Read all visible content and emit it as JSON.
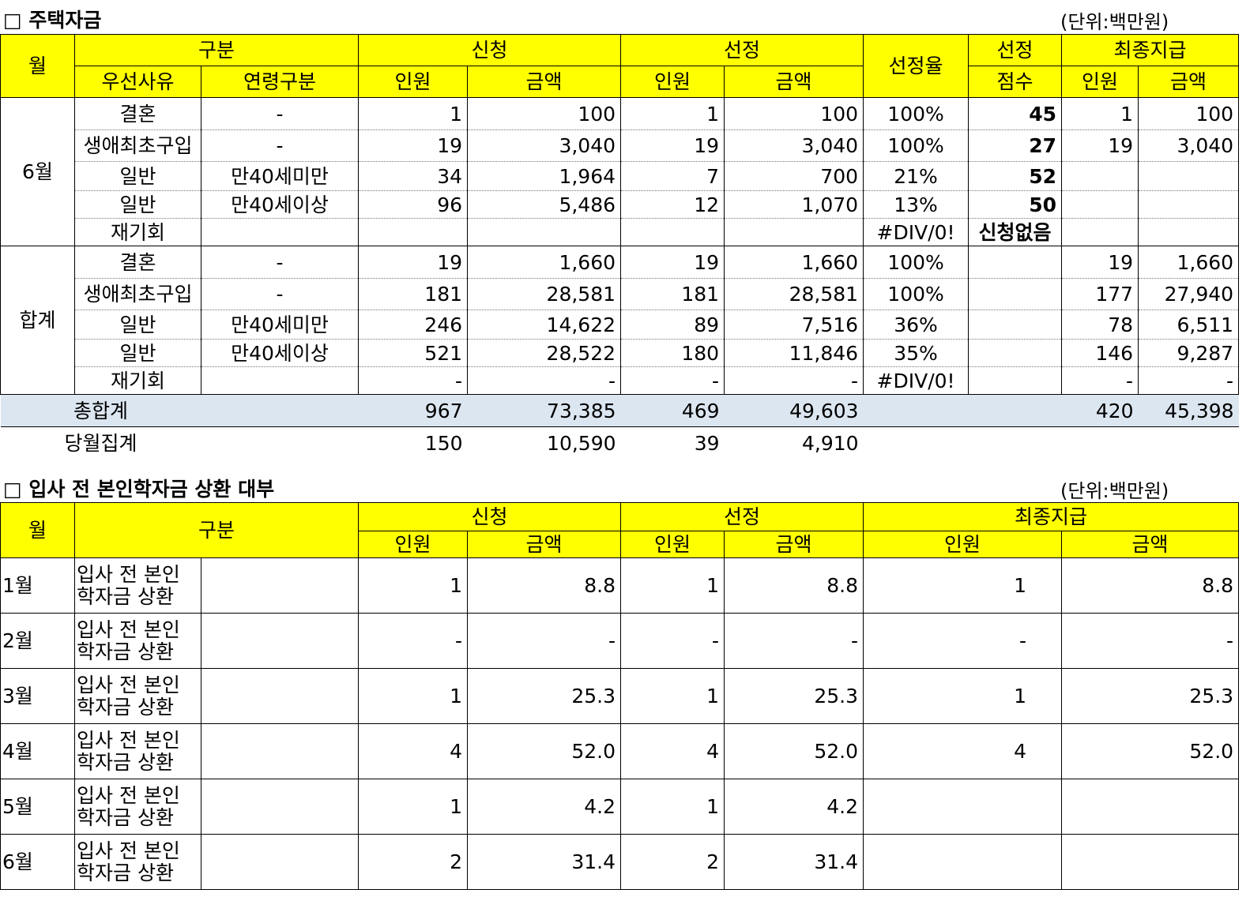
{
  "section1": {
    "title": "□ 주택자금",
    "unit": "(단위:백만원)",
    "headers": {
      "month": "월",
      "category": "구분",
      "priority": "우선사유",
      "age": "연령구분",
      "apply": "신청",
      "select": "선정",
      "rate": "선정율",
      "score_top": "선정",
      "score_bottom": "점수",
      "final": "최종지급",
      "people": "인원",
      "amount": "금액"
    },
    "groups": [
      {
        "month": "6월",
        "rows": [
          {
            "reason": "결혼",
            "age": "-",
            "apply_n": "1",
            "apply_amt": "100",
            "sel_n": "1",
            "sel_amt": "100",
            "rate": "100%",
            "score": "45",
            "final_n": "1",
            "final_amt": "100"
          },
          {
            "reason": "생애최초구입",
            "age": "-",
            "apply_n": "19",
            "apply_amt": "3,040",
            "sel_n": "19",
            "sel_amt": "3,040",
            "rate": "100%",
            "score": "27",
            "final_n": "19",
            "final_amt": "3,040"
          },
          {
            "reason": "일반",
            "age": "만40세미만",
            "apply_n": "34",
            "apply_amt": "1,964",
            "sel_n": "7",
            "sel_amt": "700",
            "rate": "21%",
            "score": "52",
            "final_n": "",
            "final_amt": ""
          },
          {
            "reason": "일반",
            "age": "만40세이상",
            "apply_n": "96",
            "apply_amt": "5,486",
            "sel_n": "12",
            "sel_amt": "1,070",
            "rate": "13%",
            "score": "50",
            "final_n": "",
            "final_amt": ""
          },
          {
            "reason": "재기회",
            "age": "",
            "apply_n": "",
            "apply_amt": "",
            "sel_n": "",
            "sel_amt": "",
            "rate": "#DIV/0!",
            "score": "신청없음",
            "final_n": "",
            "final_amt": ""
          }
        ]
      },
      {
        "month": "합계",
        "rows": [
          {
            "reason": "결혼",
            "age": "-",
            "apply_n": "19",
            "apply_amt": "1,660",
            "sel_n": "19",
            "sel_amt": "1,660",
            "rate": "100%",
            "score": "",
            "final_n": "19",
            "final_amt": "1,660"
          },
          {
            "reason": "생애최초구입",
            "age": "-",
            "apply_n": "181",
            "apply_amt": "28,581",
            "sel_n": "181",
            "sel_amt": "28,581",
            "rate": "100%",
            "score": "",
            "final_n": "177",
            "final_amt": "27,940"
          },
          {
            "reason": "일반",
            "age": "만40세미만",
            "apply_n": "246",
            "apply_amt": "14,622",
            "sel_n": "89",
            "sel_amt": "7,516",
            "rate": "36%",
            "score": "",
            "final_n": "78",
            "final_amt": "6,511"
          },
          {
            "reason": "일반",
            "age": "만40세이상",
            "apply_n": "521",
            "apply_amt": "28,522",
            "sel_n": "180",
            "sel_amt": "11,846",
            "rate": "35%",
            "score": "",
            "final_n": "146",
            "final_amt": "9,287"
          },
          {
            "reason": "재기회",
            "age": "",
            "apply_n": "-",
            "apply_amt": "-",
            "sel_n": "-",
            "sel_amt": "-",
            "rate": "#DIV/0!",
            "score": "",
            "final_n": "-",
            "final_amt": "-"
          }
        ]
      }
    ],
    "total": {
      "label": "총합계",
      "apply_n": "967",
      "apply_amt": "73,385",
      "sel_n": "469",
      "sel_amt": "49,603",
      "final_n": "420",
      "final_amt": "45,398"
    },
    "monthly": {
      "label": "당월집계",
      "apply_n": "150",
      "apply_amt": "10,590",
      "sel_n": "39",
      "sel_amt": "4,910"
    }
  },
  "section2": {
    "title": "□ 입사 전 본인학자금 상환 대부",
    "unit": "(단위:백만원)",
    "headers": {
      "month": "월",
      "category": "구분",
      "apply": "신청",
      "select": "선정",
      "final": "최종지급",
      "people": "인원",
      "amount": "금액"
    },
    "rows": [
      {
        "month": "1월",
        "label": "입사 전 본인 학자금 상환",
        "apply_n": "1",
        "apply_amt": "8.8",
        "sel_n": "1",
        "sel_amt": "8.8",
        "final_n": "1",
        "final_amt": "8.8"
      },
      {
        "month": "2월",
        "label": "입사 전 본인 학자금 상환",
        "apply_n": "-",
        "apply_amt": "-",
        "sel_n": "-",
        "sel_amt": "-",
        "final_n": "-",
        "final_amt": "-"
      },
      {
        "month": "3월",
        "label": "입사 전 본인 학자금 상환",
        "apply_n": "1",
        "apply_amt": "25.3",
        "sel_n": "1",
        "sel_amt": "25.3",
        "final_n": "1",
        "final_amt": "25.3"
      },
      {
        "month": "4월",
        "label": "입사 전 본인 학자금 상환",
        "apply_n": "4",
        "apply_amt": "52.0",
        "sel_n": "4",
        "sel_amt": "52.0",
        "final_n": "4",
        "final_amt": "52.0"
      },
      {
        "month": "5월",
        "label": "입사 전 본인 학자금 상환",
        "apply_n": "1",
        "apply_amt": "4.2",
        "sel_n": "1",
        "sel_amt": "4.2",
        "final_n": "",
        "final_amt": ""
      },
      {
        "month": "6월",
        "label": "입사 전 본인 학자금 상환",
        "apply_n": "2",
        "apply_amt": "31.4",
        "sel_n": "2",
        "sel_amt": "31.4",
        "final_n": "",
        "final_amt": ""
      }
    ]
  }
}
